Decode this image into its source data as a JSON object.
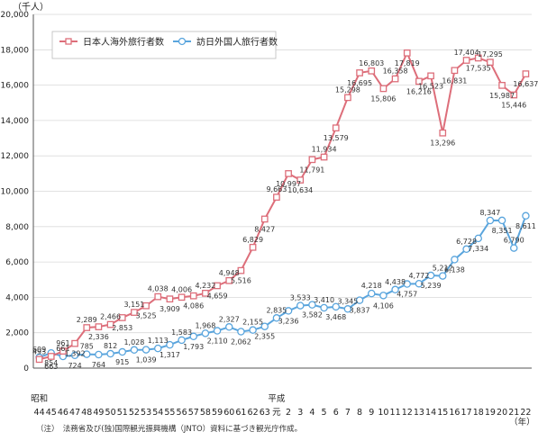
{
  "chart_data": {
    "type": "line",
    "unit_label": "（千人）",
    "x_unit_label": "（年）",
    "era_labels": [
      "昭和",
      "平成"
    ],
    "categories": [
      "44",
      "45",
      "46",
      "47",
      "48",
      "49",
      "50",
      "51",
      "52",
      "53",
      "54",
      "55",
      "56",
      "57",
      "58",
      "59",
      "60",
      "61",
      "62",
      "63",
      "元",
      "2",
      "3",
      "4",
      "5",
      "6",
      "7",
      "8",
      "9",
      "10",
      "11",
      "12",
      "13",
      "14",
      "15",
      "16",
      "17",
      "18",
      "19",
      "20",
      "21",
      "22"
    ],
    "ylim": [
      0,
      20000
    ],
    "yticks": [
      "0",
      "2,000",
      "4,000",
      "6,000",
      "8,000",
      "10,000",
      "12,000",
      "14,000",
      "16,000",
      "18,000",
      "20,000"
    ],
    "grid": true,
    "legend_position": "top-left",
    "series": [
      {
        "name": "日本人海外旅行者数",
        "color": "#dd6e7a",
        "marker": "square",
        "values": [
          493,
          663,
          961,
          1392,
          2289,
          2336,
          2466,
          2853,
          3151,
          3525,
          4038,
          3909,
          4006,
          4086,
          4232,
          4659,
          4948,
          5516,
          6829,
          8427,
          9663,
          10997,
          10634,
          11791,
          11934,
          13579,
          15298,
          16695,
          16803,
          15806,
          16358,
          17819,
          16216,
          16523,
          13296,
          16831,
          17404,
          17535,
          17295,
          15987,
          15446,
          16637
        ],
        "labels": [
          "493",
          "663",
          "961",
          "1,392",
          "2,289",
          "2,336",
          "2,466",
          "2,853",
          "3,151",
          "3,525",
          "4,038",
          "3,909",
          "4,006",
          "4,086",
          "4,232",
          "4,659",
          "4,948",
          "5,516",
          "6,829",
          "8,427",
          "9,663",
          "10,997",
          "10,634",
          "11,791",
          "11,934",
          "13,579",
          "15,298",
          "16,695",
          "16,803",
          "15,806",
          "16,358",
          "17,819",
          "16,216",
          "16,523",
          "13,296",
          "16,831",
          "17,404",
          "17,535",
          "17,295",
          "15,987",
          "15,446",
          "16,637"
        ]
      },
      {
        "name": "訪日外国人旅行者数",
        "color": "#5aa5dd",
        "marker": "circle",
        "values": [
          609,
          854,
          661,
          724,
          785,
          764,
          812,
          915,
          1028,
          1039,
          1113,
          1317,
          1583,
          1793,
          1968,
          2110,
          2327,
          2062,
          2155,
          2355,
          2835,
          3236,
          3533,
          3582,
          3410,
          3468,
          3345,
          3837,
          4218,
          4106,
          4438,
          4757,
          4772,
          5239,
          5212,
          6138,
          6728,
          7334,
          8347,
          8351,
          6790,
          8611
        ],
        "labels": [
          "609",
          "854",
          "661",
          "724",
          "785",
          "764",
          "812",
          "915",
          "1,028",
          "1,039",
          "1,113",
          "1,317",
          "1,583",
          "1,793",
          "1,968",
          "2,110",
          "2,327",
          "2,062",
          "2,155",
          "2,355",
          "2,835",
          "3,236",
          "3,533",
          "3,582",
          "3,410",
          "3,468",
          "3,345",
          "3,837",
          "4,218",
          "4,106",
          "4,438",
          "4,757",
          "4,772",
          "5,239",
          "5,212",
          "6,138",
          "6,728",
          "7,334",
          "8,347",
          "8,351",
          "6,790",
          "8,611"
        ]
      }
    ]
  },
  "note": "（注）　法務省及び(独)国際観光振興機構（JNTO）資料に基づき観光庁作成。"
}
